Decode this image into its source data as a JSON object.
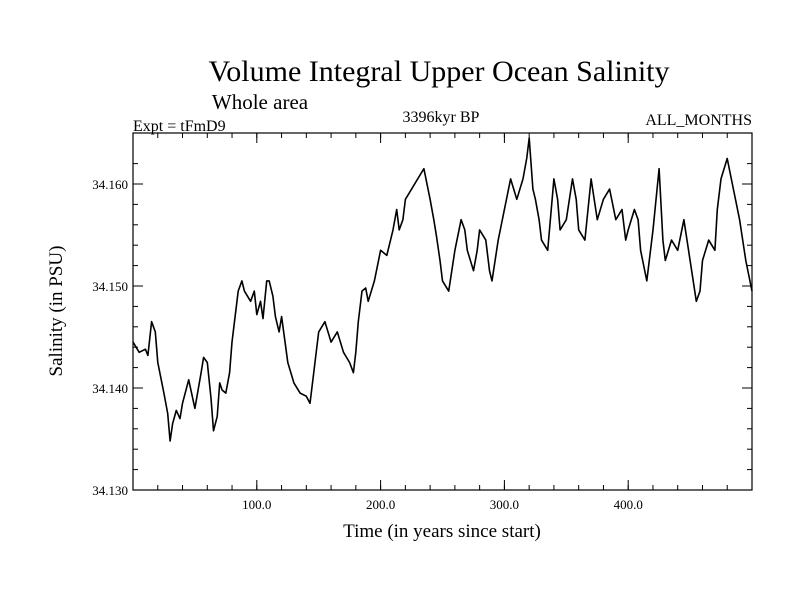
{
  "chart_data": {
    "type": "line",
    "title": "Volume Integral Upper Ocean Salinity",
    "subtitle": "Whole area",
    "left_label": "Expt = tFmD9",
    "center_label": "3396kyr BP",
    "right_label": "ALL_MONTHS",
    "xlabel": "Time (in years since start)",
    "ylabel": "Salinity (in PSU)",
    "xlim": [
      0,
      500
    ],
    "ylim": [
      34.13,
      34.165
    ],
    "x_ticks": [
      100,
      200,
      300,
      400
    ],
    "x_tick_labels": [
      "100.0",
      "200.0",
      "300.0",
      "400.0"
    ],
    "y_ticks": [
      34.13,
      34.14,
      34.15,
      34.16
    ],
    "y_tick_labels": [
      "34.130",
      "34.140",
      "34.150",
      "34.160"
    ],
    "x_minor_step": 20,
    "y_minor_step": 0.002,
    "series": [
      {
        "name": "Salinity",
        "x": [
          0,
          5,
          10,
          12,
          15,
          18,
          20,
          25,
          28,
          30,
          32,
          35,
          38,
          40,
          45,
          50,
          55,
          57,
          60,
          63,
          65,
          68,
          70,
          72,
          75,
          78,
          80,
          85,
          88,
          90,
          95,
          98,
          100,
          103,
          105,
          108,
          110,
          113,
          115,
          118,
          120,
          125,
          130,
          135,
          140,
          143,
          145,
          148,
          150,
          155,
          160,
          165,
          170,
          175,
          178,
          180,
          182,
          185,
          188,
          190,
          195,
          200,
          205,
          210,
          213,
          215,
          218,
          220,
          225,
          230,
          235,
          240,
          243,
          245,
          248,
          250,
          255,
          260,
          265,
          268,
          270,
          275,
          278,
          280,
          285,
          288,
          290,
          295,
          300,
          305,
          310,
          315,
          318,
          320,
          323,
          325,
          328,
          330,
          335,
          340,
          343,
          345,
          350,
          355,
          358,
          360,
          365,
          370,
          375,
          380,
          385,
          390,
          395,
          398,
          400,
          405,
          408,
          410,
          415,
          420,
          425,
          428,
          430,
          435,
          440,
          445,
          450,
          455,
          458,
          460,
          465,
          470,
          472,
          475,
          480,
          485,
          490,
          495,
          500
        ],
        "values": [
          34.1445,
          34.1435,
          34.1438,
          34.1432,
          34.1465,
          34.1455,
          34.1425,
          34.1395,
          34.1375,
          34.1348,
          34.1365,
          34.1378,
          34.137,
          34.1385,
          34.1408,
          34.138,
          34.1415,
          34.143,
          34.1425,
          34.139,
          34.1358,
          34.1372,
          34.1405,
          34.1398,
          34.1395,
          34.1415,
          34.1445,
          34.1495,
          34.1505,
          34.1495,
          34.1485,
          34.1495,
          34.1472,
          34.1485,
          34.1468,
          34.1505,
          34.1505,
          34.149,
          34.147,
          34.1455,
          34.147,
          34.1425,
          34.1405,
          34.1395,
          34.1392,
          34.1385,
          34.1405,
          34.1435,
          34.1455,
          34.1465,
          34.1445,
          34.1455,
          34.1435,
          34.1425,
          34.1415,
          34.1435,
          34.1465,
          34.1495,
          34.1498,
          34.1485,
          34.1505,
          34.1535,
          34.153,
          34.1555,
          34.1575,
          34.1555,
          34.1565,
          34.1585,
          34.1595,
          34.1605,
          34.1615,
          34.1585,
          34.1565,
          34.155,
          34.1525,
          34.1505,
          34.1495,
          34.1535,
          34.1565,
          34.1555,
          34.1535,
          34.1515,
          34.1535,
          34.1555,
          34.1545,
          34.1515,
          34.1505,
          34.1545,
          34.1575,
          34.1605,
          34.1585,
          34.1605,
          34.1625,
          34.1645,
          34.1595,
          34.1585,
          34.1565,
          34.1545,
          34.1535,
          34.1605,
          34.1585,
          34.1555,
          34.1565,
          34.1605,
          34.1585,
          34.1555,
          34.1545,
          34.1605,
          34.1565,
          34.1585,
          34.1595,
          34.1565,
          34.1575,
          34.1545,
          34.1555,
          34.1575,
          34.1565,
          34.1535,
          34.1505,
          34.1555,
          34.1615,
          34.1545,
          34.1525,
          34.1545,
          34.1535,
          34.1565,
          34.1525,
          34.1485,
          34.1495,
          34.1525,
          34.1545,
          34.1535,
          34.1575,
          34.1605,
          34.1625,
          34.1595,
          34.1565,
          34.1525,
          34.1495
        ]
      }
    ]
  }
}
